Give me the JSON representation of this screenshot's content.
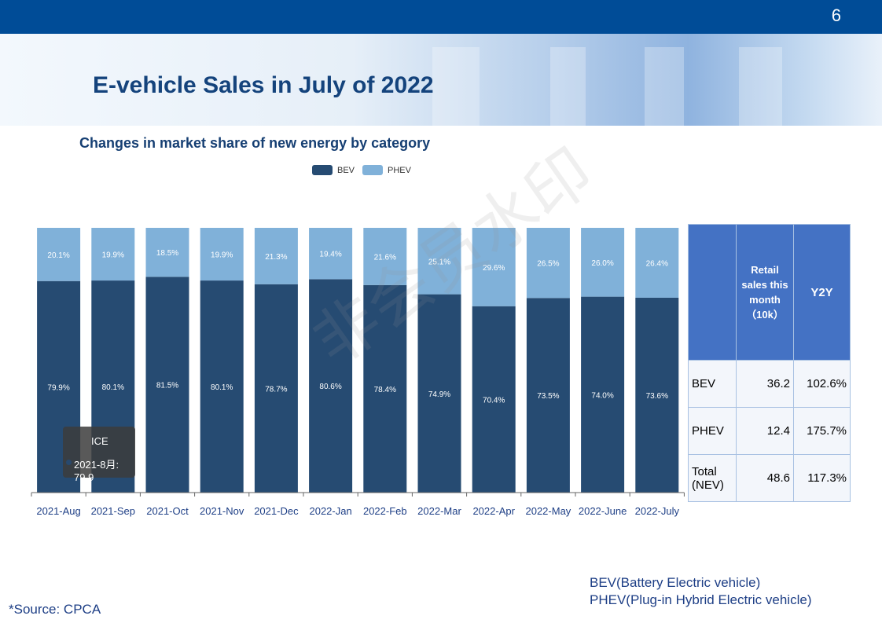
{
  "page": {
    "number": "6",
    "title": "E-vehicle Sales in July of 2022"
  },
  "chart_data": {
    "type": "bar",
    "stacked": true,
    "title": "Changes in market share of new energy by category",
    "categories": [
      "2021-Aug",
      "2021-Sep",
      "2021-Oct",
      "2021-Nov",
      "2021-Dec",
      "2022-Jan",
      "2022-Feb",
      "2022-Mar",
      "2022-Apr",
      "2022-May",
      "2022-June",
      "2022-July"
    ],
    "series": [
      {
        "name": "BEV",
        "color": "#264b72",
        "values": [
          79.9,
          80.1,
          81.5,
          80.1,
          78.7,
          80.6,
          78.4,
          74.9,
          70.4,
          73.5,
          74.0,
          73.6
        ]
      },
      {
        "name": "PHEV",
        "color": "#80b1d9",
        "values": [
          20.1,
          19.9,
          18.5,
          19.9,
          21.3,
          19.4,
          21.6,
          25.1,
          29.6,
          26.5,
          26.0,
          26.4
        ]
      }
    ],
    "ylim": [
      0,
      100
    ],
    "legend": "top",
    "grid": false,
    "tooltip": {
      "title": "ICE",
      "text": "2021-8月: 79.9"
    }
  },
  "table": {
    "headers": [
      "",
      "Retail sales this month (10k)",
      "Y2Y"
    ],
    "header_lines": [
      "Retail",
      "sales this",
      "month",
      "（10k）"
    ],
    "rows": [
      {
        "label": "BEV",
        "sales": "36.2",
        "y2y": "102.6%"
      },
      {
        "label": "PHEV",
        "sales": "12.4",
        "y2y": "175.7%"
      },
      {
        "label_lines": [
          "Total",
          "(NEV)"
        ],
        "sales": "48.6",
        "y2y": "117.3%"
      }
    ]
  },
  "watermark": "非会员水印",
  "notes": [
    "BEV(Battery Electric vehicle)",
    "PHEV(Plug-in Hybrid Electric vehicle)"
  ],
  "source": "*Source:   CPCA"
}
